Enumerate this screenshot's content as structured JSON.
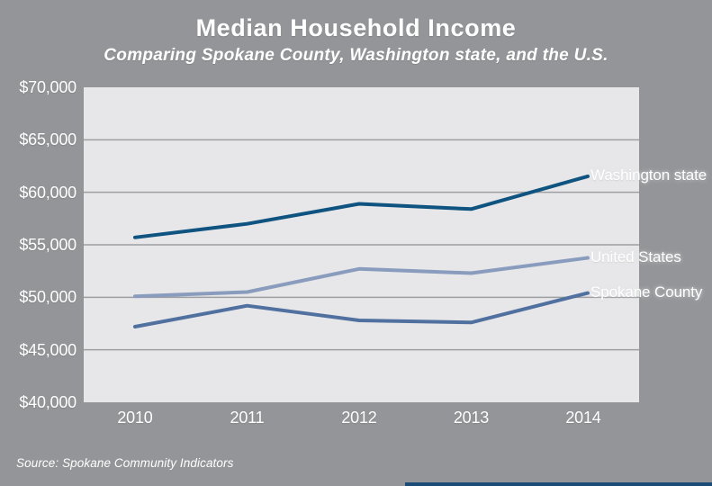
{
  "page": {
    "title": "Median Household Income",
    "subtitle": "Comparing Spokane County, Washington state, and the U.S.",
    "source": "Source: Spokane Community Indicators"
  },
  "colors": {
    "background": "#939598",
    "plot_background": "#e7e7e9",
    "gridline": "#9d9fa2",
    "text": "#ffffff",
    "accent_bar": "#1b4c77"
  },
  "chart_data": {
    "type": "line",
    "title": "Median Household Income",
    "subtitle": "Comparing Spokane County, Washington state, and the U.S.",
    "categories": [
      "2010",
      "2011",
      "2012",
      "2013",
      "2014"
    ],
    "series": [
      {
        "name": "Washington state",
        "color": "#0f5380",
        "values": [
          55700,
          57000,
          58900,
          58400,
          61400
        ]
      },
      {
        "name": "United States",
        "color": "#8a9cbe",
        "values": [
          50100,
          50500,
          52700,
          52300,
          53700
        ]
      },
      {
        "name": "Spokane County",
        "color": "#50709f",
        "values": [
          47200,
          49200,
          47800,
          47600,
          50300
        ]
      }
    ],
    "xlabel": "",
    "ylabel": "",
    "ylim": [
      40000,
      70000
    ],
    "y_ticks": [
      70000,
      65000,
      60000,
      55000,
      50000,
      45000,
      40000
    ],
    "y_tick_labels": [
      "$70,000",
      "$65,000",
      "$60,000",
      "$55,000",
      "$50,000",
      "$45,000",
      "$40,000"
    ],
    "grid": true,
    "legend_position": "labels-at-line-ends-right"
  }
}
